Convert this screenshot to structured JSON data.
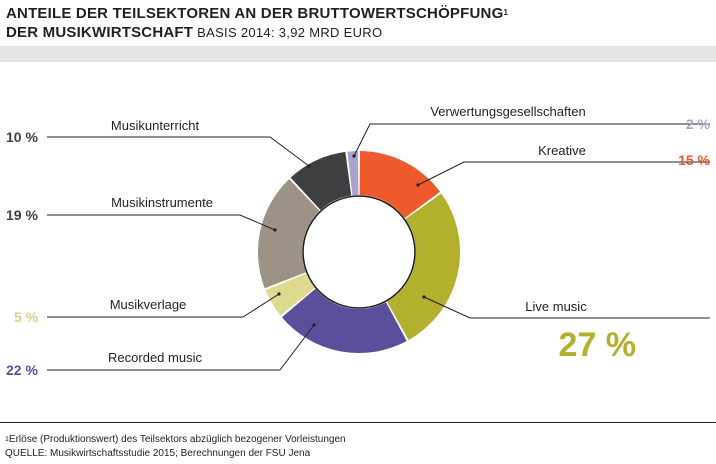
{
  "title_line1": "ANTEILE DER TEILSEKTOREN AN DER BRUTTOWERTSCHÖPFUNG",
  "title_footnote_marker": "1",
  "title_line2": "DER MUSIKWIRTSCHAFT",
  "subtitle": "BASIS 2014: 3,92 MRD EURO",
  "chart_data": {
    "type": "pie",
    "title": "ANTEILE DER TEILSEKTOREN AN DER BRUTTOWERTSCHÖPFUNG DER MUSIKWIRTSCHAFT",
    "subtitle": "BASIS 2014: 3,92 MRD EURO",
    "unit": "%",
    "donut": true,
    "slices": [
      {
        "label": "Kreative",
        "value": 15,
        "display": "15 %",
        "color": "#ee5a2b"
      },
      {
        "label": "Live music",
        "value": 27,
        "display": "27 %",
        "color": "#b3b02e"
      },
      {
        "label": "Recorded music",
        "value": 22,
        "display": "22 %",
        "color": "#5b4f9c"
      },
      {
        "label": "Musikverlage",
        "value": 5,
        "display": "5 %",
        "color": "#dedb8f"
      },
      {
        "label": "Musikinstrumente",
        "value": 19,
        "display": "19 %",
        "color": "#9c9285"
      },
      {
        "label": "Musikunterricht",
        "value": 10,
        "display": "10 %",
        "color": "#3d3f40"
      },
      {
        "label": "Verwertungsgesellschaften",
        "value": 2,
        "display": "2 %",
        "color": "#a9a3d0"
      }
    ],
    "label_colors": {
      "dark": "#3f3f3f",
      "orange": "#ee5a2b",
      "olive": "#b3b02e",
      "lilac": "#a9a3d0",
      "pale": "#d4d08a",
      "purple": "#5b4f9c"
    }
  },
  "footnote": "Erlöse (Produktionswert) des Teilsektors abzüglich bezogener Vorleistungen",
  "footnote_marker": "1",
  "source": "QUELLE: Musikwirtschaftsstudie 2015; Berechnungen der FSU Jena"
}
